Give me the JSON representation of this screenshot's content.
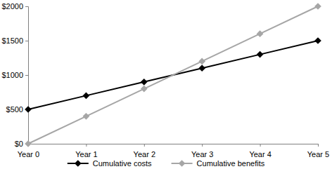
{
  "chart_data": {
    "type": "line",
    "categories": [
      "Year 0",
      "Year 1",
      "Year 2",
      "Year 3",
      "Year 4",
      "Year 5"
    ],
    "series": [
      {
        "name": "Cumulative costs",
        "color": "#000000",
        "marker": "diamond",
        "values": [
          500,
          700,
          900,
          1100,
          1300,
          1500
        ]
      },
      {
        "name": "Cumulative benefits",
        "color": "#a6a6a6",
        "marker": "diamond",
        "values": [
          0,
          400,
          800,
          1200,
          1600,
          2000
        ]
      }
    ],
    "ylim": [
      0,
      2000
    ],
    "yticks": [
      {
        "value": 0,
        "label": "$0"
      },
      {
        "value": 500,
        "label": "$500"
      },
      {
        "value": 1000,
        "label": "$1000"
      },
      {
        "value": 1500,
        "label": "$1500"
      },
      {
        "value": 2000,
        "label": "$2000"
      }
    ],
    "grid": false,
    "legend": "bottom"
  }
}
